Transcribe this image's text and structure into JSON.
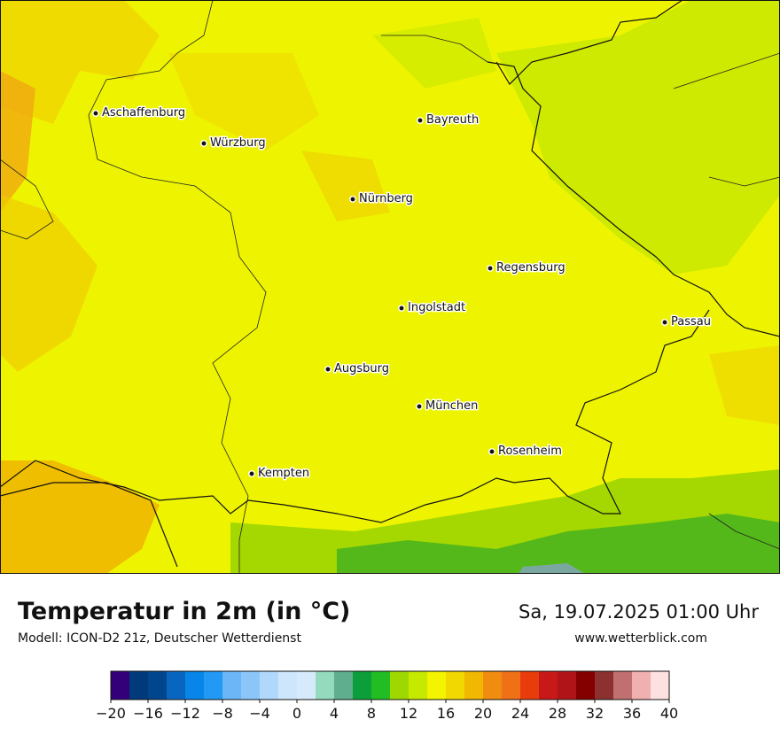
{
  "map": {
    "cities": [
      "Aschaffenburg",
      "Würzburg",
      "Bayreuth",
      "Nürnberg",
      "Regensburg",
      "Ingolstadt",
      "Passau",
      "Augsburg",
      "München",
      "Rosenheim",
      "Kempten"
    ]
  },
  "footer": {
    "title": "Temperatur in 2m (in °C)",
    "model": "Modell: ICON-D2 21z, Deutscher Wetterdienst",
    "datetime": "Sa, 19.07.2025 01:00 Uhr",
    "website": "www.wetterblick.com"
  },
  "colorbar": {
    "lim": [
      -20,
      40
    ],
    "colors": [
      "#34007a",
      "#003a7a",
      "#00468c",
      "#0866c0",
      "#0885e8",
      "#2299f4",
      "#6cb6f8",
      "#8cc6f9",
      "#b0d8fb",
      "#cde6fc",
      "#d7eafc",
      "#93dbbc",
      "#5fae8e",
      "#0c9e3a",
      "#22bd22",
      "#9ed800",
      "#c6e900",
      "#f4f400",
      "#f0d800",
      "#f0b800",
      "#f08c10",
      "#f07018",
      "#e83c0c",
      "#c81818",
      "#b01418",
      "#840000",
      "#8c3030",
      "#c07070",
      "#f0b0b0",
      "#fde0e0"
    ],
    "ticks": [
      {
        "value": -20,
        "label": "−20"
      },
      {
        "value": -16,
        "label": "−16"
      },
      {
        "value": -12,
        "label": "−12"
      },
      {
        "value": -8,
        "label": "−8"
      },
      {
        "value": -4,
        "label": "−4"
      },
      0,
      4,
      8,
      12,
      16,
      20,
      24,
      28,
      32,
      36,
      40
    ]
  }
}
